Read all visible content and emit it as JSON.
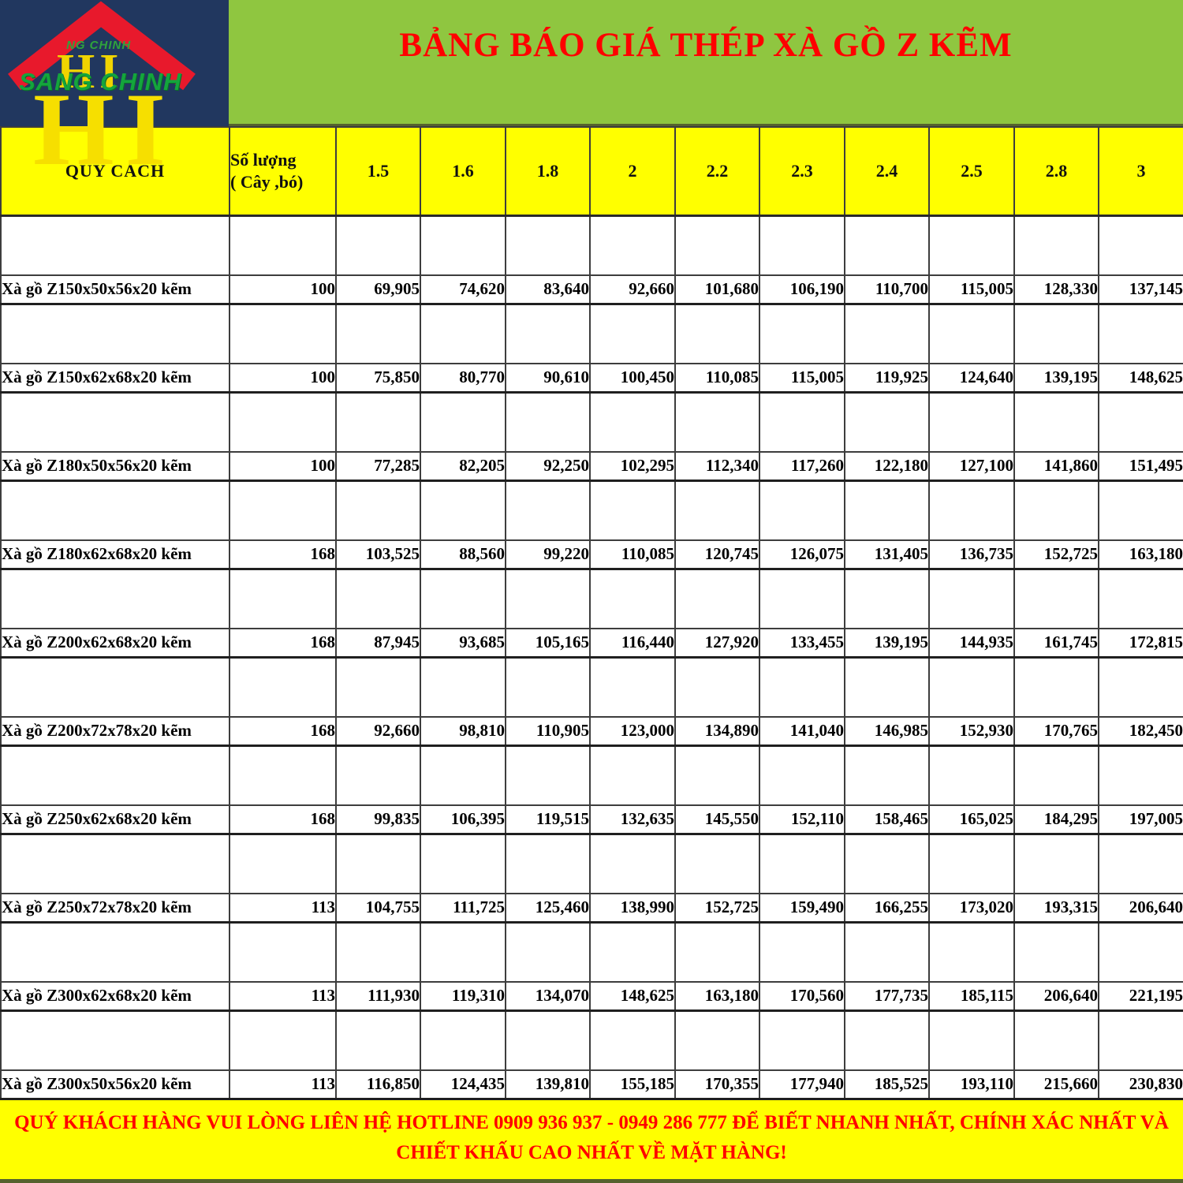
{
  "logo": {
    "brand_small": "NG CHINH",
    "brand_large": "SANG CHINH",
    "watermark_small": "HI",
    "watermark_big": "HI",
    "colors": {
      "box_bg": "#21375F",
      "roof_red": "#E8192C",
      "brand_green": "#14A53C",
      "watermark_yellow": "#F6DF00"
    }
  },
  "header": {
    "title": "BẢNG BÁO GIÁ THÉP XÀ GỒ Z KẼM",
    "title_color": "#FF0000",
    "band_color": "#8FC640"
  },
  "table": {
    "col1_header": "QUY CÁCH",
    "col2_header_line1": "Số lượng",
    "col2_header_line2": "( Cây ,bó)",
    "header_bg": "#FFFF00",
    "length_columns": [
      "1.5",
      "1.6",
      "1.8",
      "2",
      "2.2",
      "2.3",
      "2.4",
      "2.5",
      "2.8",
      "3"
    ],
    "rows": [
      {
        "name": "Xà gồ Z150x50x56x20 kẽm",
        "qty": "100",
        "prices": [
          "69,905",
          "74,620",
          "83,640",
          "92,660",
          "101,680",
          "106,190",
          "110,700",
          "115,005",
          "128,330",
          "137,145"
        ]
      },
      {
        "name": "Xà gồ Z150x62x68x20 kẽm",
        "qty": "100",
        "prices": [
          "75,850",
          "80,770",
          "90,610",
          "100,450",
          "110,085",
          "115,005",
          "119,925",
          "124,640",
          "139,195",
          "148,625"
        ]
      },
      {
        "name": "Xà gồ Z180x50x56x20 kẽm",
        "qty": "100",
        "prices": [
          "77,285",
          "82,205",
          "92,250",
          "102,295",
          "112,340",
          "117,260",
          "122,180",
          "127,100",
          "141,860",
          "151,495"
        ]
      },
      {
        "name": "Xà gồ Z180x62x68x20 kẽm",
        "qty": "168",
        "prices": [
          "103,525",
          "88,560",
          "99,220",
          "110,085",
          "120,745",
          "126,075",
          "131,405",
          "136,735",
          "152,725",
          "163,180"
        ]
      },
      {
        "name": "Xà gồ Z200x62x68x20 kẽm",
        "qty": "168",
        "prices": [
          "87,945",
          "93,685",
          "105,165",
          "116,440",
          "127,920",
          "133,455",
          "139,195",
          "144,935",
          "161,745",
          "172,815"
        ]
      },
      {
        "name": "Xà gồ Z200x72x78x20 kẽm",
        "qty": "168",
        "prices": [
          "92,660",
          "98,810",
          "110,905",
          "123,000",
          "134,890",
          "141,040",
          "146,985",
          "152,930",
          "170,765",
          "182,450"
        ]
      },
      {
        "name": "Xà gồ Z250x62x68x20 kẽm",
        "qty": "168",
        "prices": [
          "99,835",
          "106,395",
          "119,515",
          "132,635",
          "145,550",
          "152,110",
          "158,465",
          "165,025",
          "184,295",
          "197,005"
        ]
      },
      {
        "name": "Xà gồ Z250x72x78x20 kẽm",
        "qty": "113",
        "prices": [
          "104,755",
          "111,725",
          "125,460",
          "138,990",
          "152,725",
          "159,490",
          "166,255",
          "173,020",
          "193,315",
          "206,640"
        ]
      },
      {
        "name": "Xà gồ Z300x62x68x20 kẽm",
        "qty": "113",
        "prices": [
          "111,930",
          "119,310",
          "134,070",
          "148,625",
          "163,180",
          "170,560",
          "177,735",
          "185,115",
          "206,640",
          "221,195"
        ]
      },
      {
        "name": "Xà gồ Z300x50x56x20 kẽm",
        "qty": "113",
        "prices": [
          "116,850",
          "124,435",
          "139,810",
          "155,185",
          "170,355",
          "177,940",
          "185,525",
          "193,110",
          "215,660",
          "230,830"
        ]
      }
    ]
  },
  "footer": {
    "text": "QUÝ KHÁCH HÀNG VUI LÒNG LIÊN HỆ HOTLINE 0909 936 937 - 0949 286 777 ĐỂ BIẾT NHANH NHẤT, CHÍNH XÁC NHẤT VÀ CHIẾT KHẤU CAO NHẤT VỀ MẶT HÀNG!",
    "text_color": "#FF0000",
    "bg_color": "#FFFF00"
  }
}
